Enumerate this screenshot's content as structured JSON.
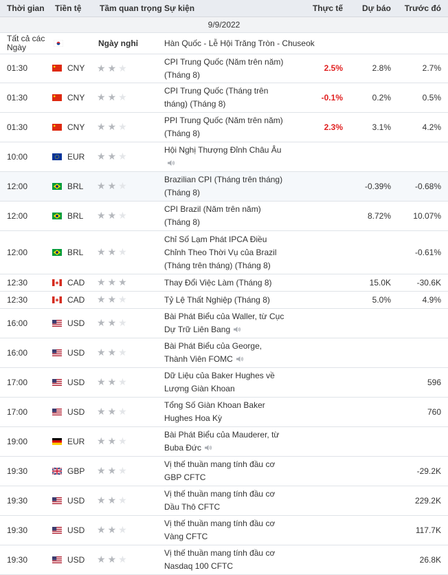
{
  "header": {
    "time": "Thời gian",
    "currency": "Tiền tệ",
    "importance": "Tầm quan trọng",
    "event": "Sự kiện",
    "actual": "Thực tế",
    "forecast": "Dự báo",
    "previous": "Trước đó"
  },
  "date": "9/9/2022",
  "holiday": {
    "time": "Tất cả các Ngày",
    "flag": "kr",
    "importance": "Ngày nghỉ",
    "event": "Hàn Quốc - Lễ Hội Trăng Tròn - Chuseok"
  },
  "rows": [
    {
      "time": "01:30",
      "flag": "cn",
      "currency": "CNY",
      "stars": 2,
      "event": "CPI Trung Quốc (Năm trên năm) (Tháng 8)",
      "actual": "2.5%",
      "forecast": "2.8%",
      "previous": "2.7%",
      "speech": false,
      "h": 42
    },
    {
      "time": "01:30",
      "flag": "cn",
      "currency": "CNY",
      "stars": 2,
      "event": "CPI Trung Quốc (Tháng trên tháng) (Tháng 8)",
      "actual": "-0.1%",
      "forecast": "0.2%",
      "previous": "0.5%",
      "speech": false,
      "h": 43
    },
    {
      "time": "01:30",
      "flag": "cn",
      "currency": "CNY",
      "stars": 2,
      "event": "PPI Trung Quốc (Năm trên năm) (Tháng 8)",
      "actual": "2.3%",
      "forecast": "3.1%",
      "previous": "4.2%",
      "speech": false,
      "h": 43
    },
    {
      "time": "10:00",
      "flag": "eu",
      "currency": "EUR",
      "stars": 2,
      "event": "Hội Nghị Thượng Đỉnh Châu Âu",
      "actual": "",
      "forecast": "",
      "previous": "",
      "speech": true,
      "h": 43
    },
    {
      "time": "12:00",
      "flag": "br",
      "currency": "BRL",
      "stars": 2,
      "event": "Brazilian CPI (Tháng trên tháng) (Tháng 8)",
      "actual": "",
      "forecast": "-0.39%",
      "previous": "-0.68%",
      "speech": false,
      "h": 43
    },
    {
      "time": "12:00",
      "flag": "br",
      "currency": "BRL",
      "stars": 2,
      "event": "CPI Brazil (Năm trên năm) (Tháng 8)",
      "actual": "",
      "forecast": "8.72%",
      "previous": "10.07%",
      "speech": false,
      "h": 43
    },
    {
      "time": "12:00",
      "flag": "br",
      "currency": "BRL",
      "stars": 2,
      "event": "Chỉ Số Lạm Phát IPCA Điều Chỉnh Theo Thời Vụ của Brazil (Tháng trên tháng) (Tháng 8)",
      "actual": "",
      "forecast": "",
      "previous": "-0.61%",
      "speech": false,
      "h": 63
    },
    {
      "time": "12:30",
      "flag": "ca",
      "currency": "CAD",
      "stars": 3,
      "event": "Thay Đổi Việc Làm (Tháng 8)",
      "actual": "",
      "forecast": "15.0K",
      "previous": "-30.6K",
      "speech": false,
      "h": 25
    },
    {
      "time": "12:30",
      "flag": "ca",
      "currency": "CAD",
      "stars": 2,
      "event": "Tỷ Lệ Thất Nghiệp (Tháng 8)",
      "actual": "",
      "forecast": "5.0%",
      "previous": "4.9%",
      "speech": false,
      "h": 25
    },
    {
      "time": "16:00",
      "flag": "us",
      "currency": "USD",
      "stars": 2,
      "event": "Bài Phát Biểu của Waller, từ Cục Dự Trữ Liên Bang",
      "actual": "",
      "forecast": "",
      "previous": "",
      "speech": true,
      "h": 43
    },
    {
      "time": "16:00",
      "flag": "us",
      "currency": "USD",
      "stars": 2,
      "event": "Bài Phát Biểu của George, Thành Viên FOMC",
      "actual": "",
      "forecast": "",
      "previous": "",
      "speech": true,
      "h": 43
    },
    {
      "time": "17:00",
      "flag": "us",
      "currency": "USD",
      "stars": 2,
      "event": "Dữ Liệu của Baker Hughes về Lượng Giàn Khoan",
      "actual": "",
      "forecast": "",
      "previous": "596",
      "speech": false,
      "h": 43
    },
    {
      "time": "17:00",
      "flag": "us",
      "currency": "USD",
      "stars": 2,
      "event": "Tổng Số Giàn Khoan Baker Hughes Hoa Kỳ",
      "actual": "",
      "forecast": "",
      "previous": "760",
      "speech": false,
      "h": 43
    },
    {
      "time": "19:00",
      "flag": "de",
      "currency": "EUR",
      "stars": 2,
      "event": "Bài Phát Biểu của Mauderer, từ Buba Đức",
      "actual": "",
      "forecast": "",
      "previous": "",
      "speech": true,
      "h": 43
    },
    {
      "time": "19:30",
      "flag": "gb",
      "currency": "GBP",
      "stars": 2,
      "event": "Vị thế thuần mang tính đầu cơ GBP CFTC",
      "actual": "",
      "forecast": "",
      "previous": "-29.2K",
      "speech": false,
      "h": 43
    },
    {
      "time": "19:30",
      "flag": "us",
      "currency": "USD",
      "stars": 2,
      "event": "Vị thế thuần mang tính đầu cơ Dầu Thô CFTC",
      "actual": "",
      "forecast": "",
      "previous": "229.2K",
      "speech": false,
      "h": 43
    },
    {
      "time": "19:30",
      "flag": "us",
      "currency": "USD",
      "stars": 2,
      "event": "Vị thế thuần mang tính đầu cơ Vàng CFTC",
      "actual": "",
      "forecast": "",
      "previous": "117.7K",
      "speech": false,
      "h": 43
    },
    {
      "time": "19:30",
      "flag": "us",
      "currency": "USD",
      "stars": 2,
      "event": "Vị thế thuần mang tính đầu cơ Nasdaq 100 CFTC",
      "actual": "",
      "forecast": "",
      "previous": "26.8K",
      "speech": false,
      "h": 43
    }
  ]
}
